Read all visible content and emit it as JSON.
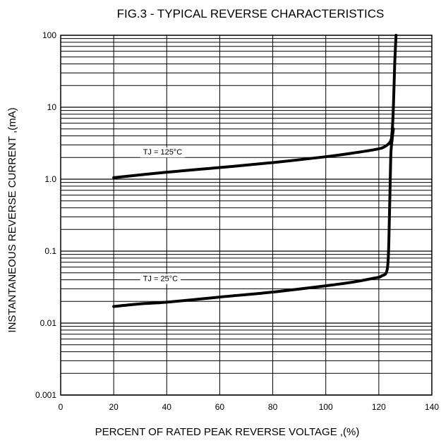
{
  "chart_data": {
    "type": "line",
    "title": "FIG.3 - TYPICAL REVERSE CHARACTERISTICS",
    "xlabel": "PERCENT OF RATED PEAK REVERSE VOLTAGE ,(%)",
    "ylabel": "INSTANTANEOUS REVERSE CURRENT ,(mA)",
    "x_scale": "linear",
    "y_scale": "log",
    "xlim": [
      0,
      140
    ],
    "ylim": [
      0.001,
      100
    ],
    "x_ticks": [
      0,
      20,
      40,
      60,
      80,
      100,
      120,
      140
    ],
    "x_tick_labels": [
      "0",
      "20",
      "40",
      "60",
      "80",
      "100",
      "120",
      "140"
    ],
    "y_ticks": [
      0.001,
      0.01,
      0.1,
      1,
      10,
      100
    ],
    "y_tick_labels": [
      "0.001",
      "0.01",
      "0.1",
      "1.0",
      "10",
      "100"
    ],
    "grid": true,
    "series": [
      {
        "name": "TJ = 125°C",
        "x": [
          20,
          40,
          60,
          80,
          100,
          110,
          119,
          122,
          124.3,
          125,
          125.5,
          126,
          126.5
        ],
        "y": [
          1.05,
          1.25,
          1.45,
          1.7,
          2.05,
          2.3,
          2.6,
          2.8,
          3.3,
          4.5,
          10,
          40,
          100
        ]
      },
      {
        "name": "TJ = 25°C",
        "x": [
          20,
          30,
          40,
          60,
          80,
          100,
          110,
          118,
          121,
          123.3,
          124,
          124.5,
          125,
          125.5
        ],
        "y": [
          0.017,
          0.0185,
          0.0195,
          0.023,
          0.027,
          0.033,
          0.037,
          0.042,
          0.045,
          0.06,
          0.3,
          2,
          3.5,
          5
        ]
      }
    ],
    "annotations": [
      {
        "text": "TJ = 125°C",
        "x": 30,
        "y": 2.4,
        "series": 0
      },
      {
        "text": "TJ = 25°C",
        "x": 30,
        "y": 0.042,
        "series": 1
      }
    ]
  }
}
